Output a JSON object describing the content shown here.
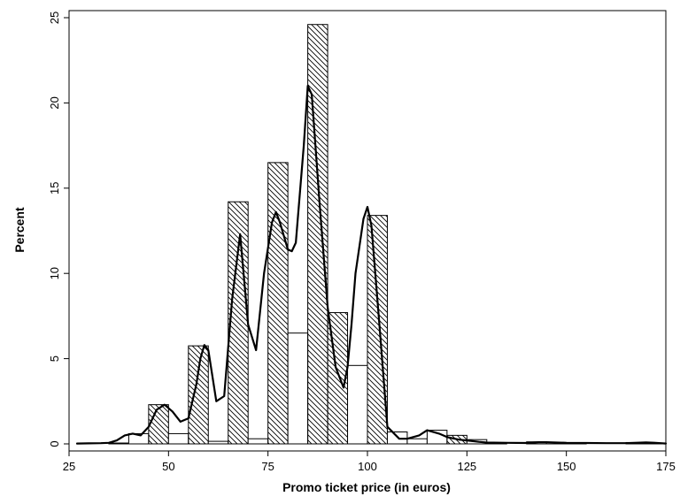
{
  "chart_data": {
    "type": "bar",
    "title": "",
    "xlabel": "Promo ticket price (in euros)",
    "ylabel": "Percent",
    "xlim": [
      25,
      175
    ],
    "ylim": [
      0,
      25
    ],
    "x_ticks": [
      25,
      50,
      75,
      100,
      125,
      150,
      175
    ],
    "y_ticks": [
      0,
      5,
      10,
      15,
      20,
      25
    ],
    "grid": false,
    "legend": "none",
    "colors": {
      "bar_outline": "#000000",
      "hatch": "#000000",
      "line": "#000000",
      "background": "#ffffff"
    },
    "histogram": {
      "bin_width": 5,
      "bins": [
        {
          "start": 35,
          "value": 0.05,
          "hatched": false
        },
        {
          "start": 40,
          "value": 0.6,
          "hatched": false
        },
        {
          "start": 45,
          "value": 2.3,
          "hatched": true
        },
        {
          "start": 50,
          "value": 0.6,
          "hatched": false
        },
        {
          "start": 55,
          "value": 5.75,
          "hatched": true
        },
        {
          "start": 60,
          "value": 0.15,
          "hatched": false
        },
        {
          "start": 65,
          "value": 14.2,
          "hatched": true
        },
        {
          "start": 70,
          "value": 0.3,
          "hatched": false
        },
        {
          "start": 75,
          "value": 16.5,
          "hatched": true
        },
        {
          "start": 80,
          "value": 6.5,
          "hatched": false
        },
        {
          "start": 85,
          "value": 24.6,
          "hatched": true
        },
        {
          "start": 90,
          "value": 7.7,
          "hatched": true
        },
        {
          "start": 95,
          "value": 4.6,
          "hatched": false
        },
        {
          "start": 100,
          "value": 13.4,
          "hatched": true
        },
        {
          "start": 105,
          "value": 0.7,
          "hatched": false
        },
        {
          "start": 110,
          "value": 0.3,
          "hatched": false
        },
        {
          "start": 115,
          "value": 0.8,
          "hatched": false
        },
        {
          "start": 120,
          "value": 0.5,
          "hatched": true
        },
        {
          "start": 125,
          "value": 0.25,
          "hatched": false
        },
        {
          "start": 130,
          "value": 0.08,
          "hatched": false
        },
        {
          "start": 140,
          "value": 0.12,
          "hatched": false
        },
        {
          "start": 145,
          "value": 0.08,
          "hatched": false
        },
        {
          "start": 150,
          "value": 0.05,
          "hatched": false
        },
        {
          "start": 165,
          "value": 0.08,
          "hatched": false
        },
        {
          "start": 170,
          "value": 0.05,
          "hatched": false
        }
      ]
    },
    "density_line": {
      "x": [
        27,
        30,
        33,
        35,
        37,
        39,
        41,
        43,
        45,
        47,
        49,
        51,
        53,
        55,
        57,
        58,
        59,
        60,
        62,
        64,
        66,
        68,
        70,
        72,
        74,
        76,
        77,
        78,
        80,
        81,
        82,
        84,
        85,
        86,
        88,
        90,
        92,
        94,
        95,
        96,
        97,
        99,
        100,
        101,
        103,
        105,
        108,
        110,
        113,
        115,
        118,
        120,
        123,
        125,
        128,
        130,
        135,
        140,
        143,
        145,
        150,
        155,
        160,
        165,
        170,
        172,
        175
      ],
      "y": [
        0.02,
        0.03,
        0.04,
        0.06,
        0.2,
        0.5,
        0.6,
        0.5,
        1.0,
        2.0,
        2.3,
        1.9,
        1.3,
        1.5,
        3.5,
        5.0,
        5.8,
        5.5,
        2.5,
        2.8,
        8.5,
        12.3,
        7.0,
        5.5,
        10.0,
        13.0,
        13.6,
        13.0,
        11.4,
        11.3,
        11.8,
        17.5,
        21.0,
        20.5,
        14.0,
        8.0,
        4.5,
        3.3,
        4.5,
        7.0,
        10.0,
        13.2,
        13.9,
        12.8,
        7.0,
        1.0,
        0.3,
        0.3,
        0.5,
        0.8,
        0.6,
        0.4,
        0.25,
        0.2,
        0.12,
        0.08,
        0.06,
        0.05,
        0.1,
        0.1,
        0.06,
        0.05,
        0.04,
        0.04,
        0.09,
        0.07,
        0.02
      ]
    }
  }
}
